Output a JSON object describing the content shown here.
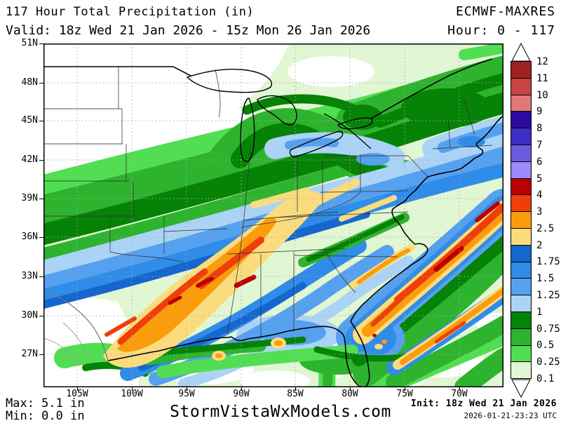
{
  "header": {
    "title": "117 Hour Total Precipitation (in)",
    "model": "ECMWF-MAXRES",
    "valid": "Valid: 18z Wed 21 Jan 2026 - 15z Mon 26 Jan 2026",
    "hour": "Hour: 0 - 117"
  },
  "footer": {
    "max": "Max: 5.1 in",
    "min": "Min: 0.0 in",
    "site": "StormVistaWxModels.com",
    "init": "Init: 18z Wed 21 Jan 2026",
    "init_utc": "2026-01-21-23:23 UTC"
  },
  "map": {
    "lat_ticks": [
      "51N",
      "48N",
      "45N",
      "42N",
      "39N",
      "36N",
      "33N",
      "30N",
      "27N"
    ],
    "lon_ticks": [
      "105W",
      "100W",
      "95W",
      "90W",
      "85W",
      "80W",
      "75W",
      "70W"
    ]
  },
  "colorbar": {
    "labels_top_to_bottom": [
      "12",
      "11",
      "10",
      "9",
      "8",
      "7",
      "6",
      "5",
      "4",
      "3",
      "2.5",
      "2",
      "1.75",
      "1.5",
      "1.25",
      "1",
      "0.75",
      "0.5",
      "0.25",
      "0.1"
    ],
    "cell_colors_top_to_bottom": [
      "#A02020",
      "#C94343",
      "#E07878",
      "#2A0AA0",
      "#3B2FC4",
      "#6A5AE0",
      "#9B8AFA",
      "#BB0000",
      "#EE3F0A",
      "#FA9D0D",
      "#FBDC7D",
      "#1566CE",
      "#2F8CE8",
      "#56A1EF",
      "#ABD3F5",
      "#068206",
      "#2EB32E",
      "#52DE52",
      "#E1F6D2"
    ]
  },
  "chart_data": {
    "type": "heatmap",
    "title": "117 Hour Total Precipitation (in)",
    "model": "ECMWF-MAXRES",
    "units": "in",
    "forecast_hours": "0 - 117",
    "valid_from": "18z Wed 21 Jan 2026",
    "valid_to": "15z Mon 26 Jan 2026",
    "init": "18z Wed 21 Jan 2026",
    "init_utc": "2026-01-21-23:23 UTC",
    "max_in": 5.1,
    "min_in": 0.0,
    "levels_in": [
      0.1,
      0.25,
      0.5,
      0.75,
      1,
      1.25,
      1.5,
      1.75,
      2,
      2.5,
      3,
      4,
      5,
      6,
      7,
      8,
      9,
      10,
      11,
      12
    ],
    "level_colors_low_to_high": [
      "#E1F6D2",
      "#52DE52",
      "#2EB32E",
      "#068206",
      "#ABD3F5",
      "#56A1EF",
      "#2F8CE8",
      "#1566CE",
      "#FBDC7D",
      "#FA9D0D",
      "#EE3F0A",
      "#BB0000",
      "#9B8AFA",
      "#6A5AE0",
      "#3B2FC4",
      "#2A0AA0",
      "#E07878",
      "#C94343",
      "#A02020"
    ],
    "lat_ticks": [
      "51N",
      "48N",
      "45N",
      "42N",
      "39N",
      "36N",
      "33N",
      "30N",
      "27N"
    ],
    "lon_ticks": [
      "105W",
      "100W",
      "95W",
      "90W",
      "85W",
      "80W",
      "75W",
      "70W"
    ],
    "source": "StormVistaWxModels.com"
  }
}
